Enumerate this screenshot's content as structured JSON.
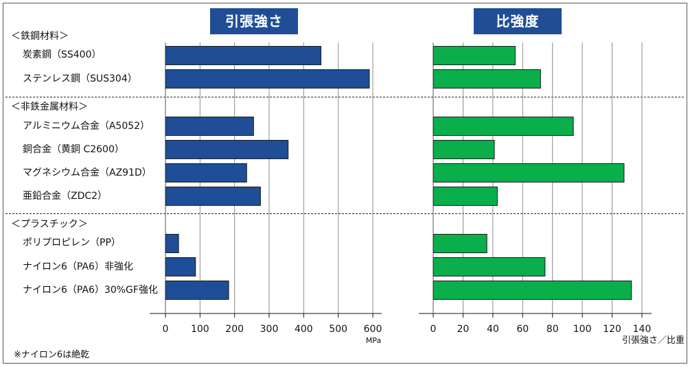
{
  "chart_data": [
    {
      "type": "bar",
      "title": "引張強さ",
      "xlabel": "MPa",
      "xlim": [
        0,
        600
      ],
      "ticks": [
        "0",
        "100",
        "200",
        "300",
        "400",
        "500",
        "600"
      ],
      "grid": true,
      "color": "#1f4e96",
      "categories": [
        "炭素鋼（SS400）",
        "ステンレス鋼（SUS304）",
        "アルミニウム合金（A5052）",
        "銅合金（黄銅 C2600）",
        "マグネシウム合金（AZ91D）",
        "亜鉛合金（ZDC2）",
        "ポリプロピレン（PP）",
        "ナイロン6（PA6）非強化",
        "ナイロン6（PA6）30%GF強化"
      ],
      "values": [
        450,
        590,
        255,
        355,
        235,
        275,
        38,
        87,
        183
      ]
    },
    {
      "type": "bar",
      "title": "比強度",
      "xlabel": "引張強さ／比重",
      "xlim": [
        0,
        140
      ],
      "ticks": [
        "0",
        "20",
        "40",
        "60",
        "80",
        "100",
        "120",
        "140"
      ],
      "grid": true,
      "color": "#0aae4a",
      "categories": [
        "炭素鋼（SS400）",
        "ステンレス鋼（SUS304）",
        "アルミニウム合金（A5052）",
        "銅合金（黄銅 C2600）",
        "マグネシウム合金（AZ91D）",
        "亜鉛合金（ZDC2）",
        "ポリプロピレン（PP）",
        "ナイロン6（PA6）非強化",
        "ナイロン6（PA6）30%GF強化"
      ],
      "values": [
        55,
        72,
        94,
        41,
        128,
        43,
        36,
        75,
        133
      ]
    }
  ],
  "groups": [
    "＜鉄鋼材料＞",
    "＜非鉄金属材料＞",
    "＜プラスチック＞"
  ],
  "footnote": "※ナイロン6は絶乾"
}
